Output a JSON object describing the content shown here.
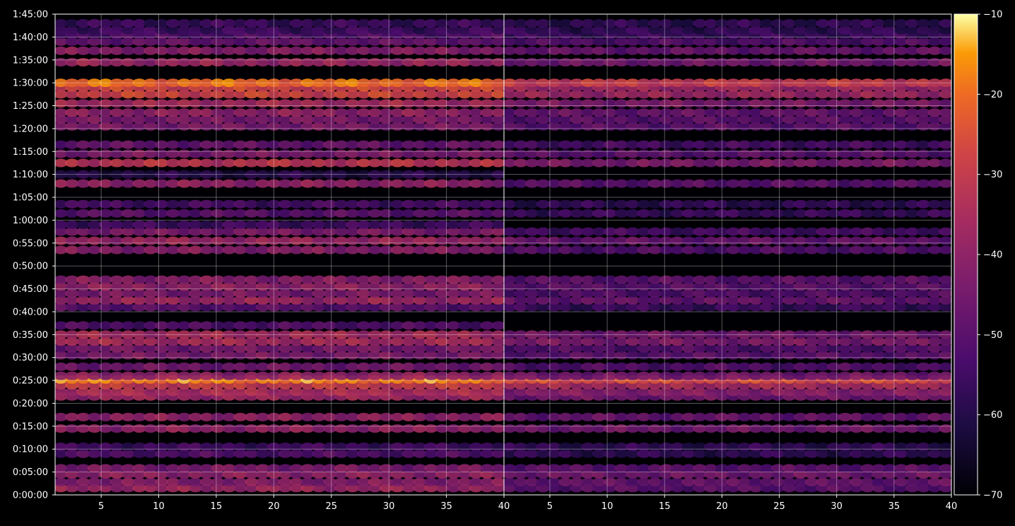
{
  "chart_data": [
    {
      "type": "heatmap",
      "panel": "left",
      "title": "",
      "xlabel": "",
      "ylabel": "",
      "xlim": [
        1,
        40
      ],
      "x_ticks": [
        "5",
        "10",
        "15",
        "20",
        "25",
        "30",
        "35",
        "40"
      ],
      "x_tick_values": [
        5,
        10,
        15,
        20,
        25,
        30,
        35,
        40
      ],
      "ylim": [
        "0:00:00",
        "1:45:00"
      ],
      "y_ticks": [
        "0:00:00",
        "0:05:00",
        "0:10:00",
        "0:15:00",
        "0:20:00",
        "0:25:00",
        "0:30:00",
        "0:35:00",
        "0:40:00",
        "0:45:00",
        "0:50:00",
        "0:55:00",
        "1:00:00",
        "1:05:00",
        "1:10:00",
        "1:15:00",
        "1:20:00",
        "1:25:00",
        "1:30:00",
        "1:35:00",
        "1:40:00",
        "1:45:00"
      ],
      "grid": true,
      "bands_minutes_vs_level": [
        {
          "t": 1.5,
          "v": -38
        },
        {
          "t": 2.8,
          "v": -42
        },
        {
          "t": 4.5,
          "v": -40
        },
        {
          "t": 5.8,
          "v": -44
        },
        {
          "t": 9.0,
          "v": -52
        },
        {
          "t": 10.5,
          "v": -55
        },
        {
          "t": 14.5,
          "v": -40
        },
        {
          "t": 17.0,
          "v": -40
        },
        {
          "t": 21.5,
          "v": -38
        },
        {
          "t": 22.5,
          "v": -35
        },
        {
          "t": 24.0,
          "v": -30
        },
        {
          "t": 25.2,
          "v": -18
        },
        {
          "t": 26.0,
          "v": -40
        },
        {
          "t": 28.0,
          "v": -46
        },
        {
          "t": 30.5,
          "v": -44
        },
        {
          "t": 32.0,
          "v": -45
        },
        {
          "t": 33.5,
          "v": -36
        },
        {
          "t": 35.0,
          "v": -36
        },
        {
          "t": 37.0,
          "v": -52
        },
        {
          "t": 41.0,
          "v": -50
        },
        {
          "t": 42.5,
          "v": -38
        },
        {
          "t": 44.0,
          "v": -44
        },
        {
          "t": 45.5,
          "v": -40
        },
        {
          "t": 47.0,
          "v": -42
        },
        {
          "t": 53.5,
          "v": -42
        },
        {
          "t": 55.5,
          "v": -38
        },
        {
          "t": 57.5,
          "v": -44
        },
        {
          "t": 59.0,
          "v": -55
        },
        {
          "t": 61.5,
          "v": -50
        },
        {
          "t": 63.5,
          "v": -54
        },
        {
          "t": 68.0,
          "v": -40
        },
        {
          "t": 70.0,
          "v": -60
        },
        {
          "t": 72.5,
          "v": -32
        },
        {
          "t": 74.5,
          "v": -44
        },
        {
          "t": 76.5,
          "v": -48
        },
        {
          "t": 80.5,
          "v": -44
        },
        {
          "t": 82.0,
          "v": -44
        },
        {
          "t": 83.5,
          "v": -40
        },
        {
          "t": 85.5,
          "v": -36
        },
        {
          "t": 87.5,
          "v": -28
        },
        {
          "t": 89.0,
          "v": -28
        },
        {
          "t": 90.0,
          "v": -20
        },
        {
          "t": 94.5,
          "v": -38
        },
        {
          "t": 97.0,
          "v": -42
        },
        {
          "t": 99.0,
          "v": -48
        },
        {
          "t": 100.5,
          "v": -52
        },
        {
          "t": 101.5,
          "v": -56
        },
        {
          "t": 103.0,
          "v": -56
        }
      ]
    },
    {
      "type": "heatmap",
      "panel": "right",
      "title": "",
      "xlabel": "",
      "ylabel": "",
      "xlim": [
        1,
        40
      ],
      "x_ticks": [
        "5",
        "10",
        "15",
        "20",
        "25",
        "30",
        "35",
        "40"
      ],
      "x_tick_values": [
        5,
        10,
        15,
        20,
        25,
        30,
        35,
        40
      ],
      "ylim": [
        "0:00:00",
        "1:45:00"
      ],
      "grid": true,
      "bands_minutes_vs_level": [
        {
          "t": 1.5,
          "v": -50
        },
        {
          "t": 2.8,
          "v": -48
        },
        {
          "t": 4.5,
          "v": -46
        },
        {
          "t": 5.8,
          "v": -50
        },
        {
          "t": 9.0,
          "v": -58
        },
        {
          "t": 10.5,
          "v": -58
        },
        {
          "t": 14.5,
          "v": -46
        },
        {
          "t": 17.0,
          "v": -48
        },
        {
          "t": 21.5,
          "v": -46
        },
        {
          "t": 22.5,
          "v": -42
        },
        {
          "t": 24.0,
          "v": -36
        },
        {
          "t": 25.2,
          "v": -26
        },
        {
          "t": 26.0,
          "v": -46
        },
        {
          "t": 28.0,
          "v": -52
        },
        {
          "t": 30.5,
          "v": -50
        },
        {
          "t": 32.0,
          "v": -52
        },
        {
          "t": 33.5,
          "v": -44
        },
        {
          "t": 35.0,
          "v": -46
        },
        {
          "t": 41.0,
          "v": -56
        },
        {
          "t": 42.5,
          "v": -48
        },
        {
          "t": 44.0,
          "v": -52
        },
        {
          "t": 45.5,
          "v": -50
        },
        {
          "t": 47.0,
          "v": -50
        },
        {
          "t": 53.5,
          "v": -52
        },
        {
          "t": 55.5,
          "v": -48
        },
        {
          "t": 57.5,
          "v": -54
        },
        {
          "t": 61.5,
          "v": -56
        },
        {
          "t": 63.5,
          "v": -58
        },
        {
          "t": 68.0,
          "v": -50
        },
        {
          "t": 72.5,
          "v": -44
        },
        {
          "t": 74.5,
          "v": -50
        },
        {
          "t": 76.5,
          "v": -54
        },
        {
          "t": 80.5,
          "v": -50
        },
        {
          "t": 82.0,
          "v": -50
        },
        {
          "t": 83.5,
          "v": -48
        },
        {
          "t": 85.5,
          "v": -44
        },
        {
          "t": 87.5,
          "v": -38
        },
        {
          "t": 89.0,
          "v": -38
        },
        {
          "t": 90.0,
          "v": -30
        },
        {
          "t": 94.5,
          "v": -46
        },
        {
          "t": 97.0,
          "v": -48
        },
        {
          "t": 99.0,
          "v": -52
        },
        {
          "t": 100.5,
          "v": -56
        },
        {
          "t": 101.5,
          "v": -58
        },
        {
          "t": 103.0,
          "v": -58
        }
      ]
    }
  ],
  "colorbar": {
    "colormap": "inferno",
    "range": [
      -70,
      -10
    ],
    "tick_values": [
      -10,
      -20,
      -30,
      -40,
      -50,
      -60,
      -70
    ],
    "tick_labels": [
      "−10",
      "−20",
      "−30",
      "−40",
      "−50",
      "−60",
      "−70"
    ]
  },
  "colors": {
    "background": "#000000",
    "grid": "#ffffff",
    "axis": "#ffffff"
  }
}
